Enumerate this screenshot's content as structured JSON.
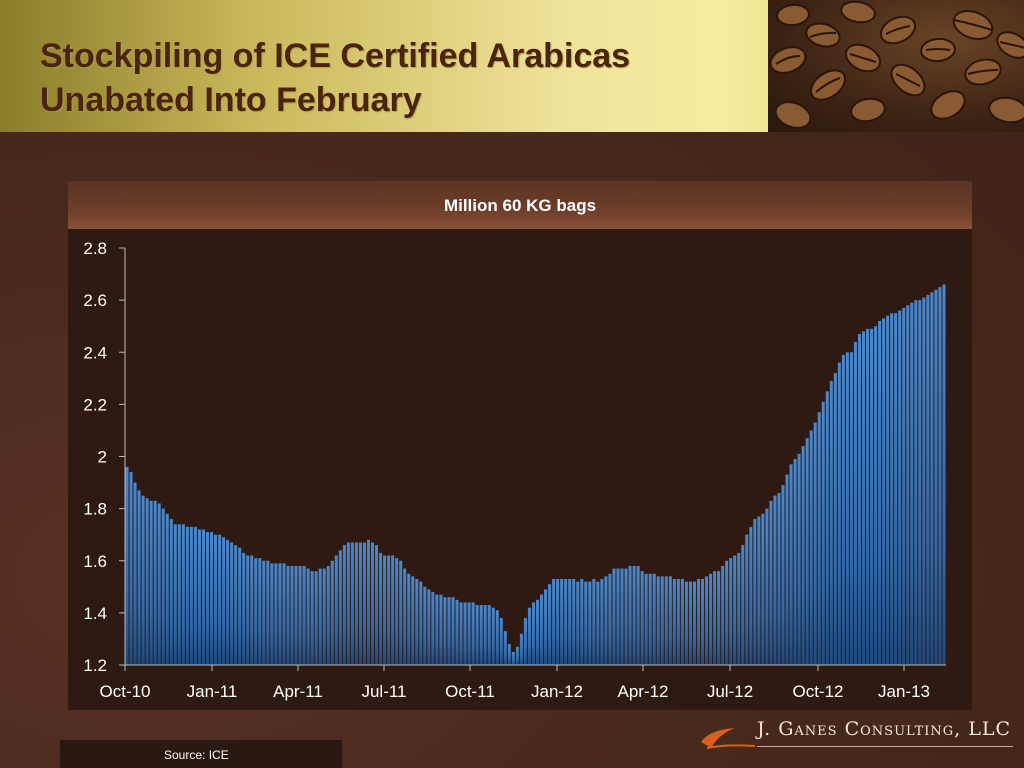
{
  "header": {
    "title_line1": "Stockpiling of ICE Certified Arabicas",
    "title_line2": "Unabated Into February"
  },
  "chart_data": {
    "type": "bar",
    "title": "Million 60 KG bags",
    "xlabel": "",
    "ylabel": "",
    "ylim": [
      1.2,
      2.8
    ],
    "yticks": [
      "1.2",
      "1.4",
      "1.6",
      "1.8",
      "2",
      "2.2",
      "2.4",
      "2.6",
      "2.8"
    ],
    "xticks": [
      "Oct-10",
      "Jan-11",
      "Apr-11",
      "Jul-11",
      "Oct-11",
      "Jan-12",
      "Apr-12",
      "Jul-12",
      "Oct-12",
      "Jan-13"
    ],
    "grid": false,
    "bar_color": "#3b74b8",
    "series": [
      {
        "values": [
          1.96,
          1.94,
          1.9,
          1.87,
          1.85,
          1.84,
          1.83,
          1.83,
          1.82,
          1.8,
          1.78,
          1.76,
          1.74,
          1.74,
          1.74,
          1.73,
          1.73,
          1.73,
          1.72,
          1.72,
          1.71,
          1.71,
          1.7,
          1.7,
          1.69,
          1.68,
          1.67,
          1.66,
          1.65,
          1.63,
          1.62,
          1.62,
          1.61,
          1.61,
          1.6,
          1.6,
          1.59,
          1.59,
          1.59,
          1.59,
          1.58,
          1.58,
          1.58,
          1.58,
          1.58,
          1.57,
          1.56,
          1.56,
          1.57,
          1.57,
          1.58,
          1.6,
          1.62,
          1.64,
          1.66,
          1.67,
          1.67,
          1.67,
          1.67,
          1.67,
          1.68,
          1.67,
          1.66,
          1.63,
          1.62,
          1.62,
          1.62,
          1.61,
          1.6,
          1.57,
          1.55,
          1.54,
          1.53,
          1.52,
          1.5,
          1.49,
          1.48,
          1.47,
          1.47,
          1.46,
          1.46,
          1.46,
          1.45,
          1.44,
          1.44,
          1.44,
          1.44,
          1.43,
          1.43,
          1.43,
          1.43,
          1.42,
          1.41,
          1.38,
          1.33,
          1.28,
          1.25,
          1.27,
          1.32,
          1.38,
          1.42,
          1.44,
          1.45,
          1.47,
          1.49,
          1.51,
          1.53,
          1.53,
          1.53,
          1.53,
          1.53,
          1.53,
          1.52,
          1.53,
          1.52,
          1.52,
          1.53,
          1.52,
          1.53,
          1.54,
          1.55,
          1.57,
          1.57,
          1.57,
          1.57,
          1.58,
          1.58,
          1.58,
          1.56,
          1.55,
          1.55,
          1.55,
          1.54,
          1.54,
          1.54,
          1.54,
          1.53,
          1.53,
          1.53,
          1.52,
          1.52,
          1.52,
          1.53,
          1.53,
          1.54,
          1.55,
          1.56,
          1.56,
          1.58,
          1.6,
          1.61,
          1.62,
          1.63,
          1.66,
          1.7,
          1.73,
          1.76,
          1.77,
          1.78,
          1.8,
          1.83,
          1.85,
          1.86,
          1.89,
          1.93,
          1.97,
          1.99,
          2.01,
          2.04,
          2.07,
          2.1,
          2.13,
          2.17,
          2.21,
          2.25,
          2.29,
          2.32,
          2.36,
          2.39,
          2.4,
          2.4,
          2.44,
          2.47,
          2.48,
          2.49,
          2.49,
          2.5,
          2.52,
          2.53,
          2.54,
          2.55,
          2.55,
          2.56,
          2.57,
          2.58,
          2.59,
          2.6,
          2.6,
          2.61,
          2.62,
          2.63,
          2.64,
          2.65,
          2.66
        ]
      }
    ]
  },
  "source": "Source: ICE",
  "logo": {
    "text": "J. Ganes Consulting, LLC"
  }
}
